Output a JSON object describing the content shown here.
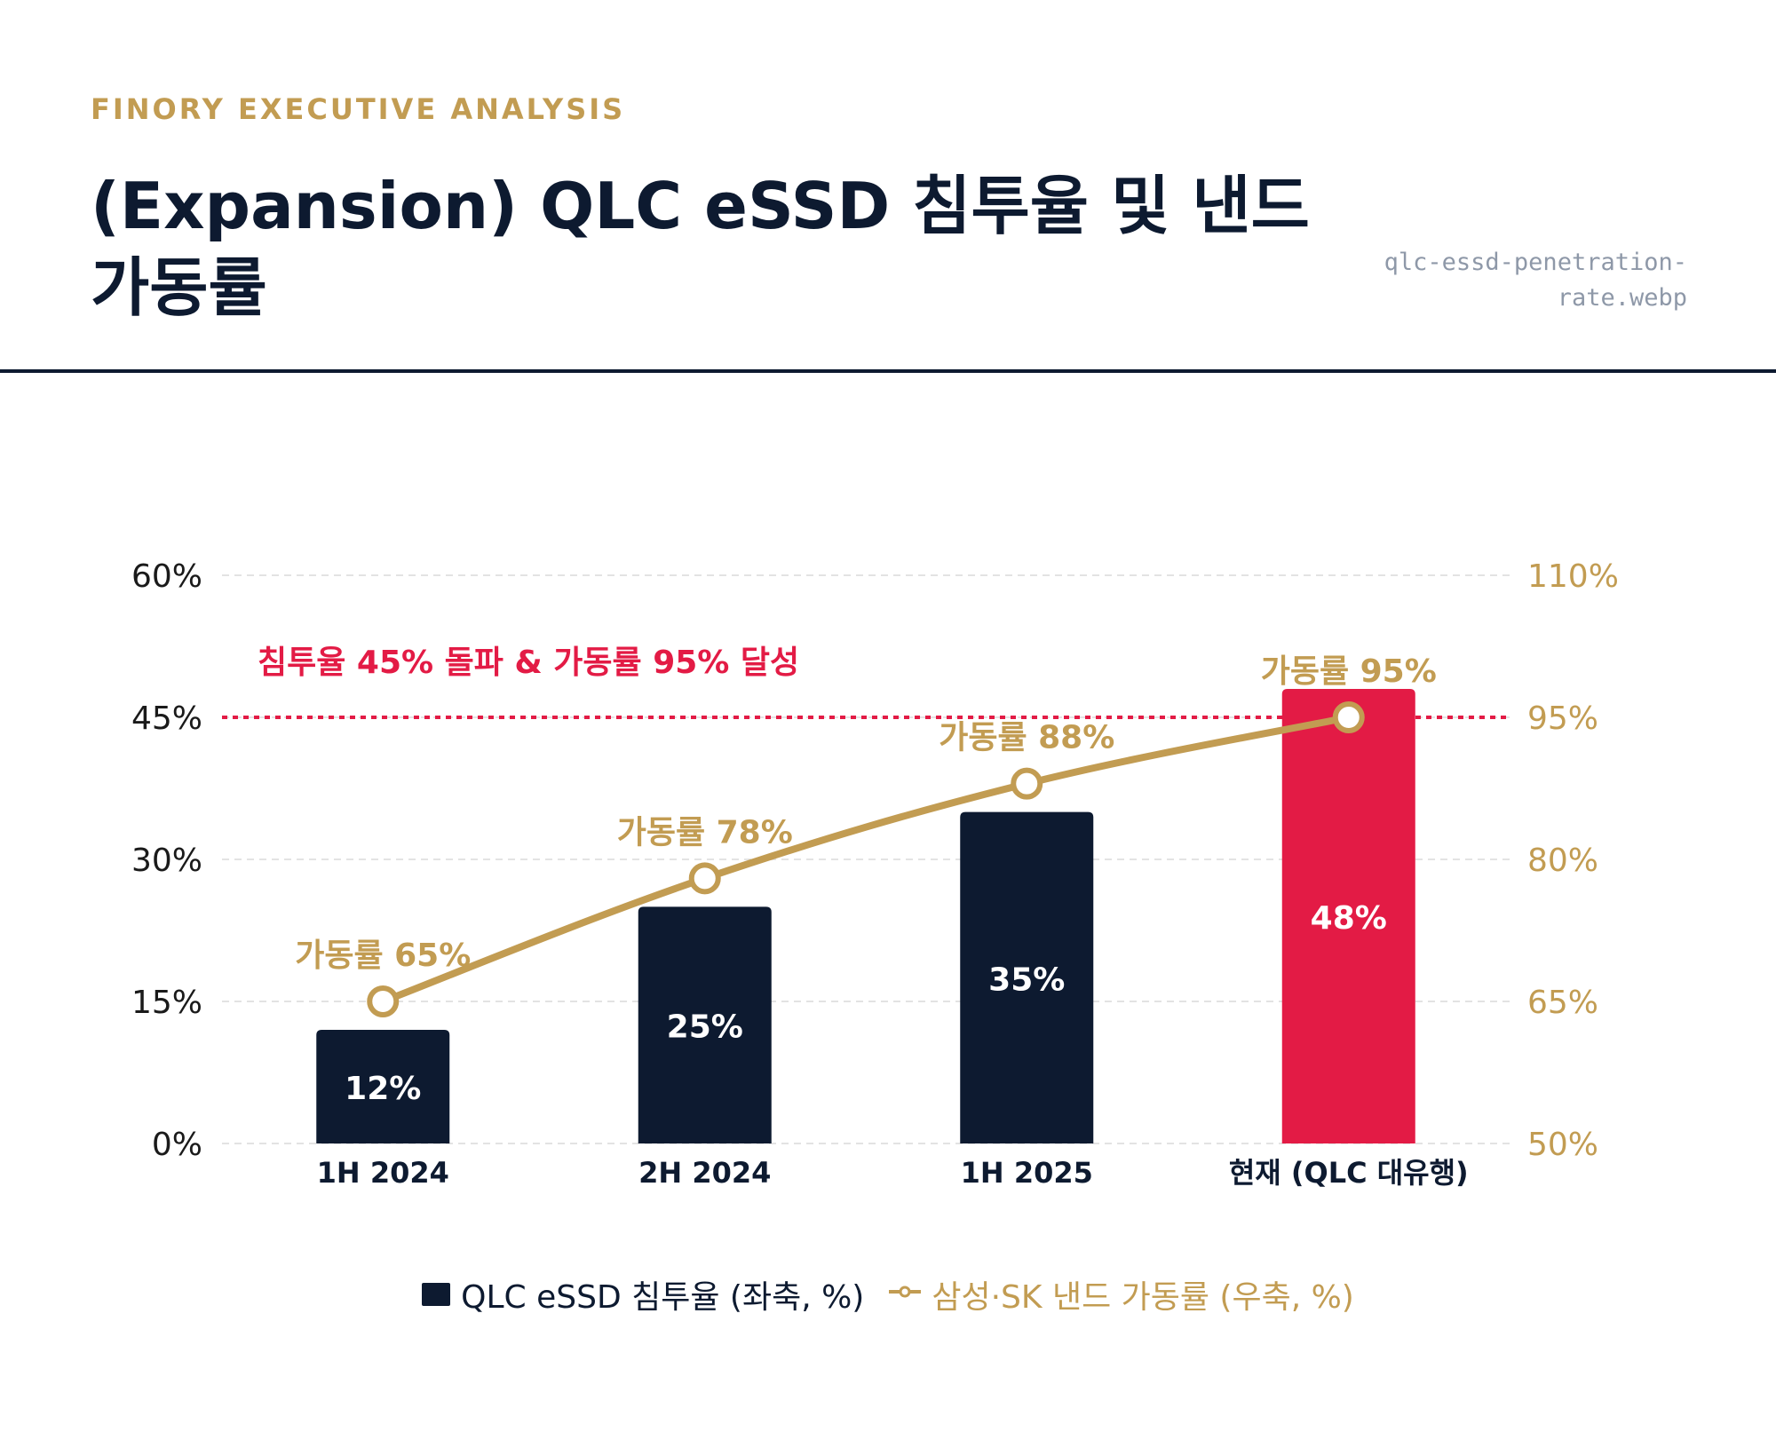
{
  "header": {
    "eyebrow": "FINORY EXECUTIVE ANALYSIS",
    "title": "(Expansion) QLC eSSD 침투율 및 낸드 가동률",
    "filename": "qlc-essd-penetration-rate.webp"
  },
  "colors": {
    "navy": "#0d1a30",
    "red": "#e31b45",
    "gold": "#c29c52",
    "grid": "#e3e3e3"
  },
  "chart_data": {
    "type": "bar",
    "categories": [
      "1H 2024",
      "2H 2024",
      "1H 2025",
      "현재 (QLC 대유행)"
    ],
    "series": [
      {
        "name": "QLC eSSD 침투율 (좌축, %)",
        "type": "bar",
        "axis": "left",
        "values": [
          12,
          25,
          35,
          48
        ],
        "data_labels": [
          "12%",
          "25%",
          "35%",
          "48%"
        ],
        "highlight_index": 3
      },
      {
        "name": "삼성·SK 낸드 가동률 (우축, %)",
        "type": "line",
        "axis": "right",
        "values": [
          65,
          78,
          88,
          95
        ],
        "data_labels": [
          "가동률 65%",
          "가동률 78%",
          "가동률 88%",
          "가동률 95%"
        ]
      }
    ],
    "y_left": {
      "ylim": [
        0,
        60
      ],
      "ticks": [
        "0%",
        "15%",
        "30%",
        "45%",
        "60%"
      ]
    },
    "y_right": {
      "ylim": [
        50,
        110
      ],
      "ticks": [
        "50%",
        "65%",
        "80%",
        "95%",
        "110%"
      ]
    },
    "threshold": {
      "value_left": 45,
      "label": "침투율 45% 돌파 & 가동률 95% 달성"
    },
    "grid": true,
    "legend_position": "bottom-center"
  }
}
